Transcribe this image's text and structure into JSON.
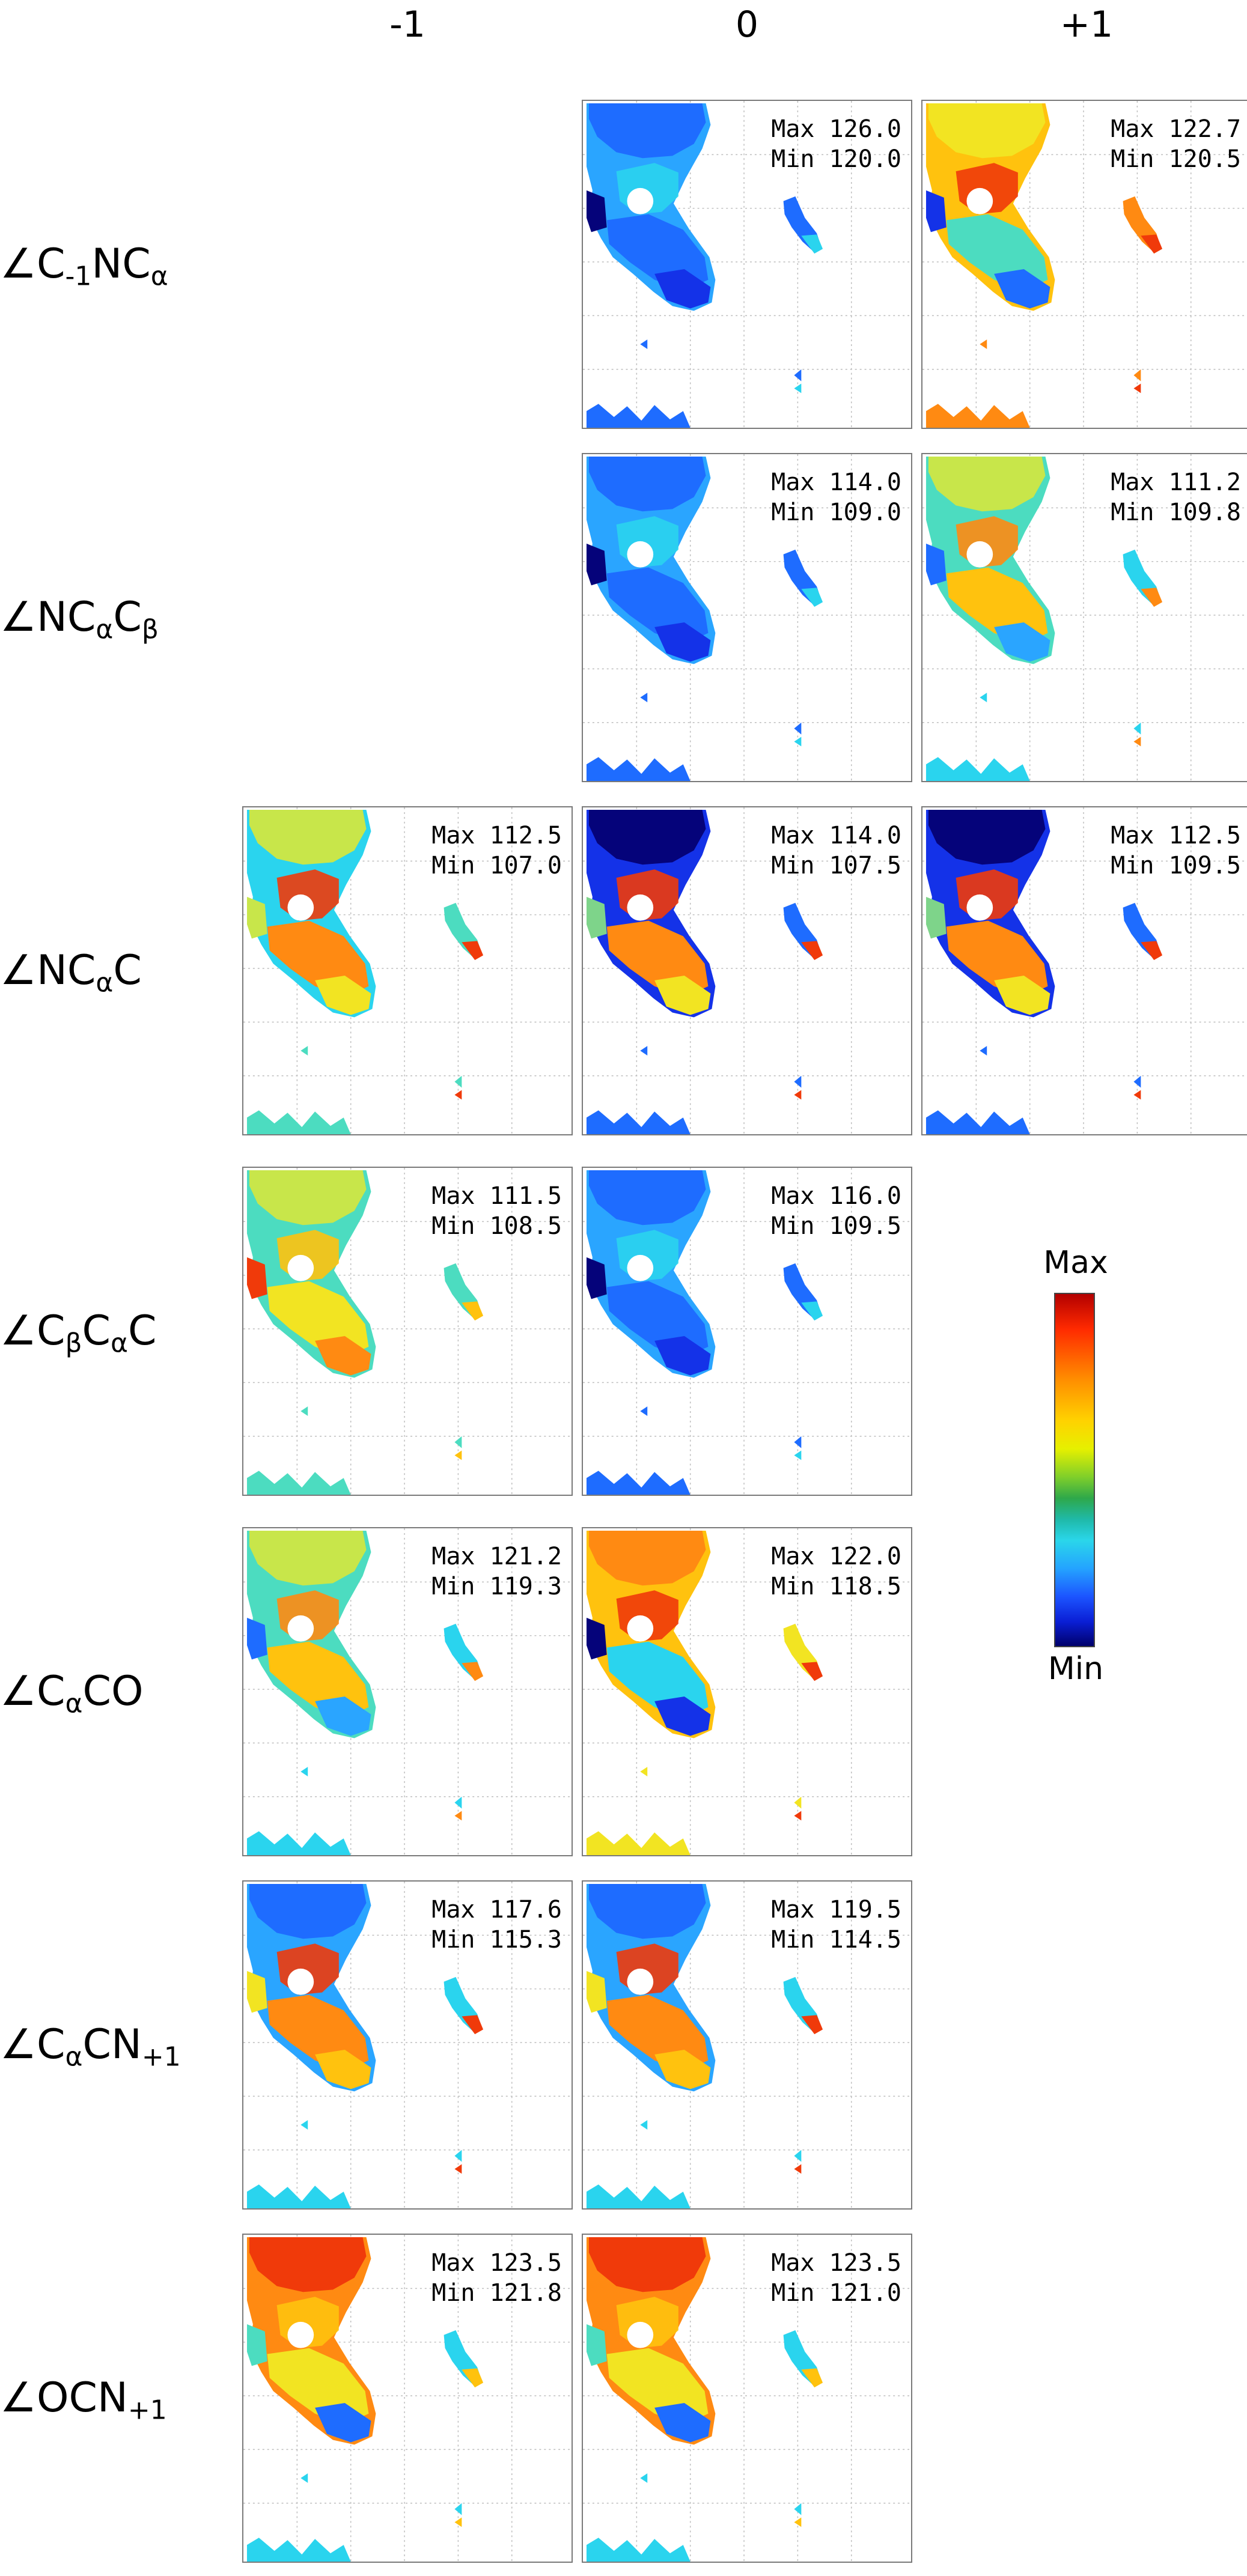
{
  "columns": [
    {
      "id": "m1",
      "label": "-1"
    },
    {
      "id": "z0",
      "label": "0"
    },
    {
      "id": "p1",
      "label": "+1"
    }
  ],
  "rows": [
    {
      "id": "c-1nca",
      "label_html": "∠C<sub>-1</sub>NC<sub>α</sub>"
    },
    {
      "id": "ncacb",
      "label_html": "∠NC<sub>α</sub>C<sub>β</sub>"
    },
    {
      "id": "ncac",
      "label_html": "∠NC<sub>α</sub>C"
    },
    {
      "id": "cbcac",
      "label_html": "∠C<sub>β</sub>C<sub>α</sub>C"
    },
    {
      "id": "caco",
      "label_html": "∠C<sub>α</sub>CO"
    },
    {
      "id": "cacn1",
      "label_html": "∠C<sub>α</sub>CN<sub>+1</sub>"
    },
    {
      "id": "ocn1",
      "label_html": "∠OCN<sub>+1</sub>"
    }
  ],
  "chart_data": {
    "type": "heatmap",
    "colormap": "jet",
    "colors": {
      "panel_border": "#7a7a7a",
      "grid": "#bdbdbd",
      "low": "#00006b",
      "high": "#b30000"
    },
    "colorbar": {
      "max_label": "Max",
      "min_label": "Min"
    },
    "panels": [
      {
        "row": 0,
        "col": 1,
        "max": "126.0",
        "min": "120.0",
        "theme": "blue"
      },
      {
        "row": 0,
        "col": 2,
        "max": "122.7",
        "min": "120.5",
        "theme": "mixed-warm-top"
      },
      {
        "row": 1,
        "col": 1,
        "max": "114.0",
        "min": "109.0",
        "theme": "blue"
      },
      {
        "row": 1,
        "col": 2,
        "max": "111.2",
        "min": "109.8",
        "theme": "mixed"
      },
      {
        "row": 2,
        "col": 0,
        "max": "112.5",
        "min": "107.0",
        "theme": "warm-mid"
      },
      {
        "row": 2,
        "col": 1,
        "max": "114.0",
        "min": "107.5",
        "theme": "dark-top-warm-mid"
      },
      {
        "row": 2,
        "col": 2,
        "max": "112.5",
        "min": "109.5",
        "theme": "dark-top-warm-mid"
      },
      {
        "row": 3,
        "col": 0,
        "max": "111.5",
        "min": "108.5",
        "theme": "warm-bottom"
      },
      {
        "row": 3,
        "col": 1,
        "max": "116.0",
        "min": "109.5",
        "theme": "blue"
      },
      {
        "row": 4,
        "col": 0,
        "max": "121.2",
        "min": "119.3",
        "theme": "mixed"
      },
      {
        "row": 4,
        "col": 1,
        "max": "122.0",
        "min": "118.5",
        "theme": "warm-top-blue-bottom"
      },
      {
        "row": 5,
        "col": 0,
        "max": "117.6",
        "min": "115.3",
        "theme": "blue-top-warm-mid"
      },
      {
        "row": 5,
        "col": 1,
        "max": "119.5",
        "min": "114.5",
        "theme": "blue-top-warm-mid"
      },
      {
        "row": 6,
        "col": 0,
        "max": "123.5",
        "min": "121.8",
        "theme": "red-top"
      },
      {
        "row": 6,
        "col": 1,
        "max": "123.5",
        "min": "121.0",
        "theme": "red-top"
      }
    ]
  }
}
